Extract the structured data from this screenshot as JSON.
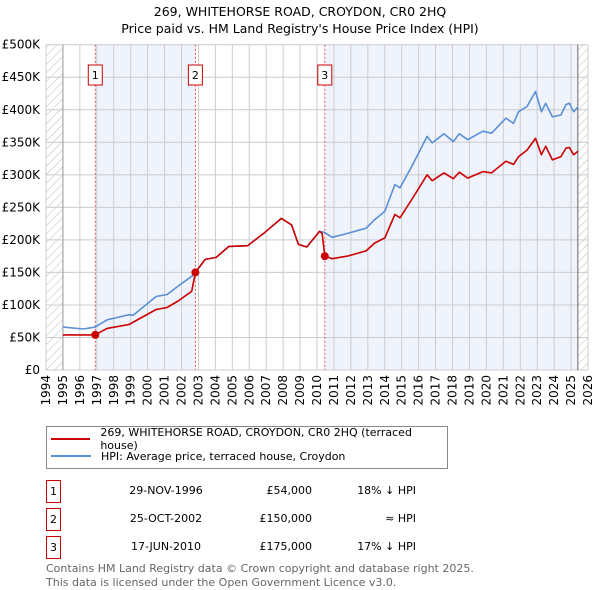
{
  "chart_data": {
    "type": "line",
    "title": "269, WHITEHORSE ROAD, CROYDON, CR0 2HQ",
    "subtitle": "Price paid vs. HM Land Registry's House Price Index (HPI)",
    "xlim": [
      1994,
      2026
    ],
    "ylim": [
      0,
      500000
    ],
    "x_ticks": [
      1994,
      1995,
      1996,
      1997,
      1998,
      1999,
      2000,
      2001,
      2002,
      2003,
      2004,
      2005,
      2006,
      2007,
      2008,
      2009,
      2010,
      2011,
      2012,
      2013,
      2014,
      2015,
      2016,
      2017,
      2018,
      2019,
      2020,
      2021,
      2022,
      2023,
      2024,
      2025,
      2026
    ],
    "y_ticks": [
      {
        "v": 0,
        "label": "£0"
      },
      {
        "v": 50000,
        "label": "£50K"
      },
      {
        "v": 100000,
        "label": "£100K"
      },
      {
        "v": 150000,
        "label": "£150K"
      },
      {
        "v": 200000,
        "label": "£200K"
      },
      {
        "v": 250000,
        "label": "£250K"
      },
      {
        "v": 300000,
        "label": "£300K"
      },
      {
        "v": 350000,
        "label": "£350K"
      },
      {
        "v": 400000,
        "label": "£400K"
      },
      {
        "v": 450000,
        "label": "£450K"
      },
      {
        "v": 500000,
        "label": "£500K"
      }
    ],
    "grid": true,
    "shaded_periods": [
      [
        1996.9,
        2002.82
      ],
      [
        2010.46,
        2025.4
      ]
    ],
    "hatched_periods": [
      [
        1994,
        1995
      ],
      [
        2025.4,
        2026
      ]
    ],
    "series": [
      {
        "name": "269, WHITEHORSE ROAD, CROYDON, CR0 2HQ (terraced house)",
        "color": "#cc0000",
        "points": [
          [
            1995,
            54000
          ],
          [
            1996.9,
            54000
          ],
          [
            1997.6,
            64000
          ],
          [
            1998.9,
            70000
          ],
          [
            2000.5,
            93000
          ],
          [
            2001.15,
            96000
          ],
          [
            2001.8,
            106000
          ],
          [
            2002.6,
            121000
          ],
          [
            2002.82,
            150000
          ],
          [
            2003.4,
            170000
          ],
          [
            2004.05,
            173000
          ],
          [
            2004.8,
            190000
          ],
          [
            2005.9,
            191000
          ],
          [
            2006.9,
            211000
          ],
          [
            2007.9,
            233000
          ],
          [
            2008.5,
            223000
          ],
          [
            2008.9,
            193000
          ],
          [
            2009.4,
            189000
          ],
          [
            2010.15,
            213000
          ],
          [
            2010.3,
            210000
          ],
          [
            2010.46,
            175000
          ],
          [
            2010.9,
            171000
          ],
          [
            2011.8,
            175000
          ],
          [
            2012.9,
            183000
          ],
          [
            2013.4,
            195000
          ],
          [
            2014.0,
            203000
          ],
          [
            2014.6,
            239000
          ],
          [
            2014.9,
            234000
          ],
          [
            2015.6,
            262000
          ],
          [
            2016.5,
            300000
          ],
          [
            2016.8,
            291000
          ],
          [
            2017.5,
            303000
          ],
          [
            2018.05,
            294000
          ],
          [
            2018.4,
            304000
          ],
          [
            2018.9,
            295000
          ],
          [
            2019.8,
            305000
          ],
          [
            2020.3,
            303000
          ],
          [
            2021.15,
            321000
          ],
          [
            2021.6,
            316000
          ],
          [
            2021.9,
            328000
          ],
          [
            2022.4,
            338000
          ],
          [
            2022.9,
            356000
          ],
          [
            2023.25,
            331000
          ],
          [
            2023.5,
            344000
          ],
          [
            2023.9,
            323000
          ],
          [
            2024.4,
            328000
          ],
          [
            2024.7,
            341000
          ],
          [
            2024.9,
            342000
          ],
          [
            2025.15,
            331000
          ],
          [
            2025.4,
            336000
          ]
        ]
      },
      {
        "name": "HPI: Average price, terraced house, Croydon",
        "color": "#5b8fd6",
        "points": [
          [
            1995,
            66000
          ],
          [
            1996.2,
            63000
          ],
          [
            1996.9,
            66000
          ],
          [
            1997.6,
            77000
          ],
          [
            1998.9,
            85000
          ],
          [
            1999.15,
            84000
          ],
          [
            2000.5,
            113000
          ],
          [
            2001.15,
            116000
          ],
          [
            2001.8,
            129000
          ],
          [
            2002.6,
            144000
          ],
          [
            2002.82,
            150000
          ],
          [
            2003.4,
            170000
          ],
          [
            2004.05,
            173000
          ],
          [
            2004.8,
            190000
          ],
          [
            2005.9,
            191000
          ],
          [
            2006.9,
            211000
          ],
          [
            2007.9,
            233000
          ],
          [
            2008.5,
            223000
          ],
          [
            2008.9,
            193000
          ],
          [
            2009.4,
            189000
          ],
          [
            2010.15,
            213000
          ],
          [
            2010.4,
            212000
          ],
          [
            2010.9,
            204000
          ],
          [
            2011.8,
            210000
          ],
          [
            2012.9,
            218000
          ],
          [
            2013.4,
            231000
          ],
          [
            2014.0,
            244000
          ],
          [
            2014.6,
            285000
          ],
          [
            2014.9,
            280000
          ],
          [
            2015.6,
            313000
          ],
          [
            2016.5,
            359000
          ],
          [
            2016.8,
            349000
          ],
          [
            2017.5,
            363000
          ],
          [
            2018.05,
            351000
          ],
          [
            2018.4,
            363000
          ],
          [
            2018.9,
            354000
          ],
          [
            2019.8,
            367000
          ],
          [
            2020.3,
            364000
          ],
          [
            2021.15,
            387000
          ],
          [
            2021.6,
            379000
          ],
          [
            2021.9,
            397000
          ],
          [
            2022.4,
            405000
          ],
          [
            2022.9,
            428000
          ],
          [
            2023.25,
            397000
          ],
          [
            2023.5,
            410000
          ],
          [
            2023.9,
            389000
          ],
          [
            2024.4,
            392000
          ],
          [
            2024.7,
            408000
          ],
          [
            2024.9,
            410000
          ],
          [
            2025.15,
            397000
          ],
          [
            2025.4,
            404000
          ]
        ]
      }
    ],
    "sales": [
      {
        "id": "1",
        "x": 1996.91,
        "y": 54000
      },
      {
        "id": "2",
        "x": 2002.82,
        "y": 150000
      },
      {
        "id": "3",
        "x": 2010.46,
        "y": 175000
      }
    ]
  },
  "header": {
    "title": "269, WHITEHORSE ROAD, CROYDON, CR0 2HQ",
    "subtitle": "Price paid vs. HM Land Registry's House Price Index (HPI)"
  },
  "legend": {
    "property": "269, WHITEHORSE ROAD, CROYDON, CR0 2HQ (terraced house)",
    "hpi": "HPI: Average price, terraced house, Croydon"
  },
  "transactions": [
    {
      "id": "1",
      "date": "29-NOV-1996",
      "price": "£54,000",
      "hpi": "18% ↓ HPI"
    },
    {
      "id": "2",
      "date": "25-OCT-2002",
      "price": "£150,000",
      "hpi": "≈ HPI"
    },
    {
      "id": "3",
      "date": "17-JUN-2010",
      "price": "£175,000",
      "hpi": "17% ↓ HPI"
    }
  ],
  "footer": {
    "line1": "Contains HM Land Registry data © Crown copyright and database right 2025.",
    "line2": "This data is licensed under the Open Government Licence v3.0."
  },
  "colors": {
    "property": "#cc0000",
    "hpi": "#5b8fd6",
    "shade": "#eef3fc",
    "grid": "#cccccc"
  }
}
